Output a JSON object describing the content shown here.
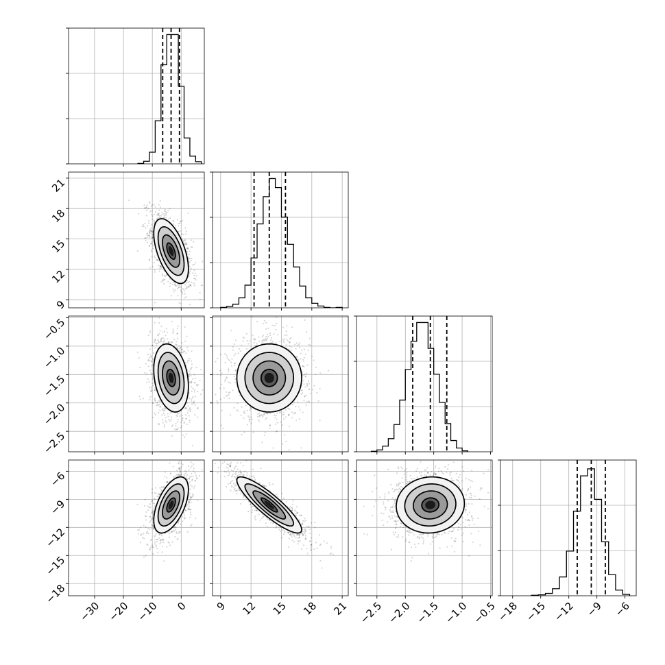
{
  "chart_data": {
    "type": "corner",
    "grid": true,
    "parameters": [
      {
        "ticks": [
          -30,
          -20,
          -10,
          0
        ],
        "tick_labels": [
          "−30",
          "−20",
          "−10",
          "0"
        ],
        "range": [
          -39,
          8
        ]
      },
      {
        "ticks": [
          9,
          12,
          15,
          18,
          21
        ],
        "tick_labels": [
          "9",
          "12",
          "15",
          "18",
          "21"
        ],
        "range": [
          8.2,
          21.6
        ]
      },
      {
        "ticks": [
          -2.5,
          -2.0,
          -1.5,
          -1.0,
          -0.5
        ],
        "tick_labels": [
          "−2.5",
          "−2.0",
          "−1.5",
          "−1.0",
          "−0.5"
        ],
        "range": [
          -2.86,
          -0.47
        ]
      },
      {
        "ticks": [
          -18,
          -15,
          -12,
          -9,
          -6
        ],
        "tick_labels": [
          "−18",
          "−15",
          "−12",
          "−9",
          "−6"
        ],
        "range": [
          -19.3,
          -4.8
        ]
      }
    ],
    "marginals": [
      {
        "quantiles": [
          -6.4,
          -3.5,
          -0.6
        ],
        "counts": [
          1,
          6,
          27,
          100,
          230,
          300,
          300,
          180,
          60,
          18,
          5
        ],
        "bin_start": -15,
        "bin_width": 2,
        "ymax": 300
      },
      {
        "quantiles": [
          12.3,
          13.8,
          15.4
        ],
        "counts": [
          1,
          3,
          8,
          22,
          50,
          110,
          185,
          245,
          285,
          265,
          200,
          140,
          90,
          48,
          22,
          10,
          4,
          1,
          0,
          1
        ],
        "bin_start": 9,
        "bin_width": 0.6,
        "ymax": 285
      },
      {
        "quantiles": [
          -1.87,
          -1.56,
          -1.27
        ],
        "counts": [
          1,
          4,
          12,
          28,
          58,
          110,
          175,
          235,
          275,
          275,
          220,
          165,
          105,
          60,
          24,
          8,
          2
        ],
        "bin_start": -2.6,
        "bin_width": 0.1,
        "ymax": 275
      },
      {
        "quantiles": [
          -11.1,
          -9.6,
          -8.1
        ],
        "counts": [
          1,
          2,
          5,
          15,
          40,
          95,
          180,
          255,
          270,
          205,
          115,
          45,
          12,
          3
        ],
        "bin_start": -16.0,
        "bin_width": 0.75,
        "ymax": 275
      }
    ],
    "joint": [
      {
        "x": 0,
        "y": 1,
        "mean": [
          -3.5,
          13.8
        ],
        "sd": [
          3.0,
          1.6
        ],
        "corr": -0.55
      },
      {
        "x": 0,
        "y": 2,
        "mean": [
          -3.5,
          -1.56
        ],
        "sd": [
          3.0,
          0.3
        ],
        "corr": -0.25
      },
      {
        "x": 1,
        "y": 2,
        "mean": [
          13.8,
          -1.56
        ],
        "sd": [
          1.6,
          0.3
        ],
        "corr": 0.0
      },
      {
        "x": 0,
        "y": 3,
        "mean": [
          -3.5,
          -9.6
        ],
        "sd": [
          3.0,
          1.5
        ],
        "corr": 0.55
      },
      {
        "x": 1,
        "y": 3,
        "mean": [
          13.8,
          -9.6
        ],
        "sd": [
          1.6,
          1.5
        ],
        "corr": -0.88
      },
      {
        "x": 2,
        "y": 3,
        "mean": [
          -1.56,
          -9.6
        ],
        "sd": [
          0.3,
          1.5
        ],
        "corr": 0.05
      }
    ]
  }
}
